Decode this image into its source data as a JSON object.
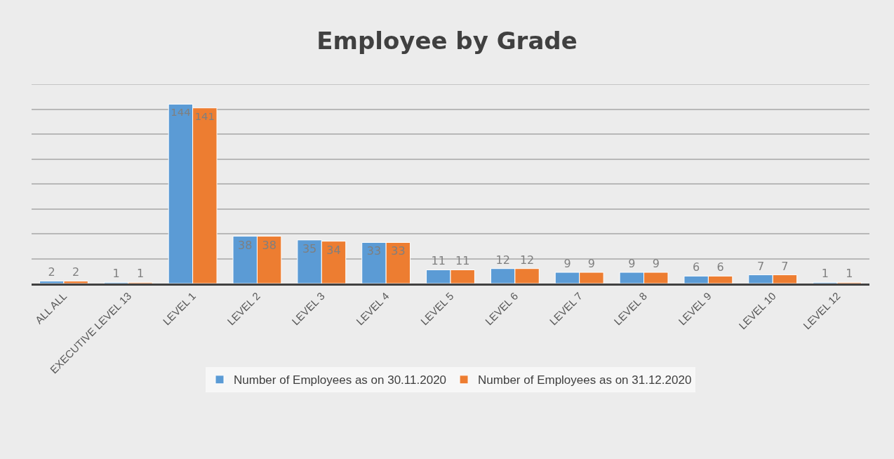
{
  "chart_data": {
    "type": "bar",
    "title": "Employee by Grade",
    "categories": [
      "ALL ALL",
      "EXECUTIVE LEVEL 13",
      "LEVEL 1",
      "LEVEL 2",
      "LEVEL 3",
      "LEVEL 4",
      "LEVEL 5",
      "LEVEL 6",
      "LEVEL 7",
      "LEVEL 8",
      "LEVEL 9",
      "LEVEL 10",
      "LEVEL 12"
    ],
    "series": [
      {
        "name": "Number of Employees as on 30.11.2020",
        "color": "#5b9bd5",
        "values": [
          2,
          1,
          144,
          38,
          35,
          33,
          11,
          12,
          9,
          9,
          6,
          7,
          1
        ]
      },
      {
        "name": "Number of Employees as on 31.12.2020",
        "color": "#ed7d31",
        "values": [
          2,
          1,
          141,
          38,
          34,
          33,
          11,
          12,
          9,
          9,
          6,
          7,
          1
        ]
      }
    ],
    "ylim": [
      0,
      160
    ],
    "yticks": [
      {
        "value": 0,
        "label": null
      },
      {
        "value": 20,
        "label": null
      },
      {
        "value": 40,
        "label": null
      },
      {
        "value": 60,
        "label": null
      },
      {
        "value": 80,
        "label": null
      },
      {
        "value": 100,
        "label": null
      },
      {
        "value": 120,
        "label": null
      },
      {
        "value": 140,
        "label": null
      },
      {
        "value": 160,
        "label": null
      }
    ],
    "tick_labels": "x",
    "grid": "y",
    "legend": "bottom",
    "data_labels": true
  }
}
